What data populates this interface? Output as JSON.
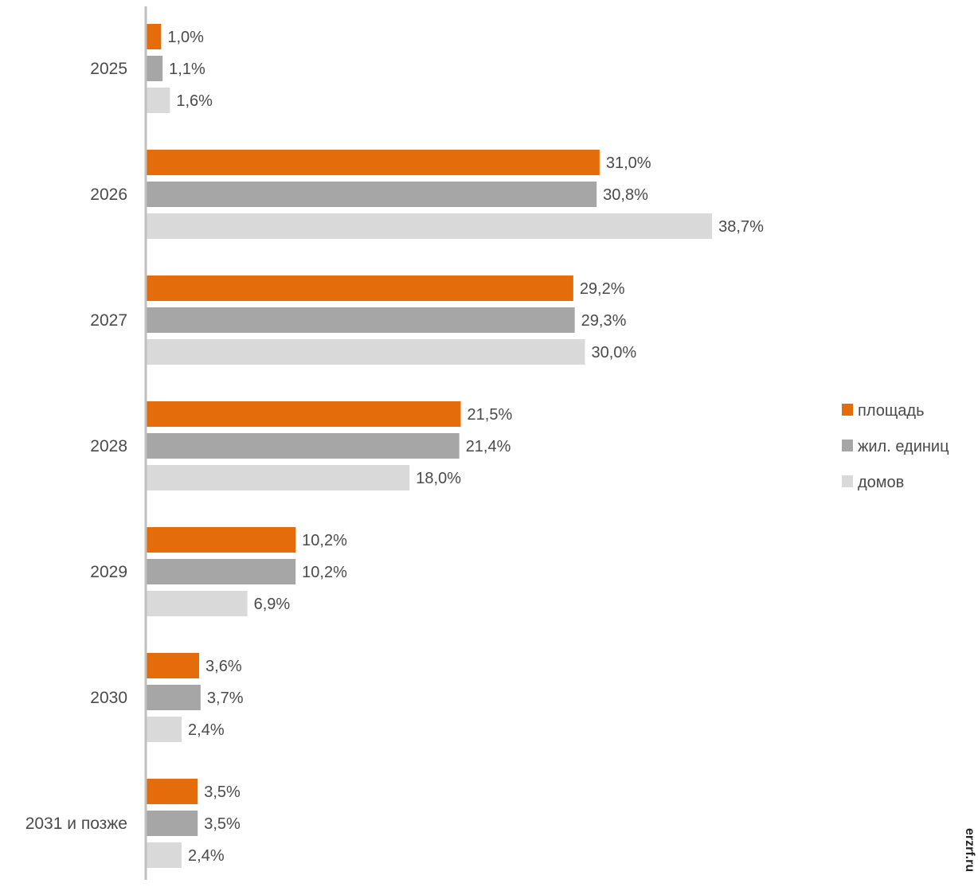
{
  "chart_data": {
    "type": "bar",
    "orientation": "horizontal",
    "categories": [
      "2025",
      "2026",
      "2027",
      "2028",
      "2029",
      "2030",
      "2031 и позже"
    ],
    "series": [
      {
        "name": "площадь",
        "color": "#e46c0a",
        "values": [
          1.0,
          31.0,
          29.2,
          21.5,
          10.2,
          3.6,
          3.5
        ],
        "labels": [
          "1,0%",
          "31,0%",
          "29,2%",
          "21,5%",
          "10,2%",
          "3,6%",
          "3,5%"
        ]
      },
      {
        "name": "жил. единиц",
        "color": "#a6a6a6",
        "values": [
          1.1,
          30.8,
          29.3,
          21.4,
          10.2,
          3.7,
          3.5
        ],
        "labels": [
          "1,1%",
          "30,8%",
          "29,3%",
          "21,4%",
          "10,2%",
          "3,7%",
          "3,5%"
        ]
      },
      {
        "name": "домов",
        "color": "#d9d9d9",
        "values": [
          1.6,
          38.7,
          30.0,
          18.0,
          6.9,
          2.4,
          2.4
        ],
        "labels": [
          "1,6%",
          "38,7%",
          "30,0%",
          "18,0%",
          "6,9%",
          "2,4%",
          "2,4%"
        ]
      }
    ],
    "axis_color": "#bfbfbf",
    "legend_position": "right",
    "grid": false,
    "xlim": [
      0,
      40
    ]
  },
  "watermark": {
    "text": "erzrf.ru"
  }
}
